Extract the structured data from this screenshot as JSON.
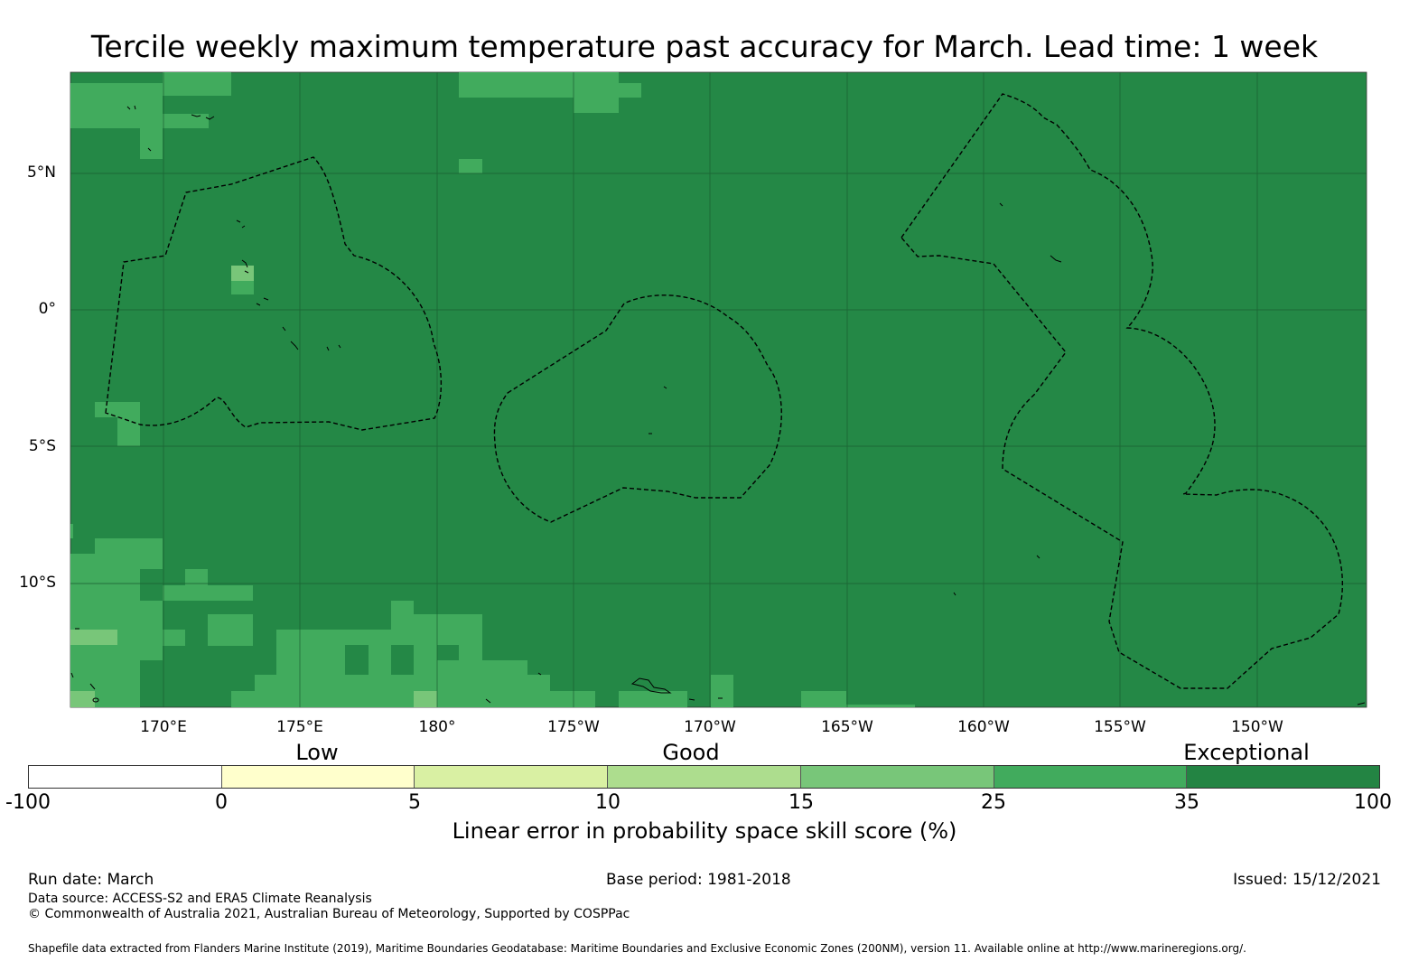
{
  "title": "Tercile weekly maximum temperature past accuracy for March. Lead time: 1 week",
  "map": {
    "background_color": "#248846",
    "lat_labels": [
      "5°N",
      "0°",
      "5°S",
      "10°S"
    ],
    "lon_labels": [
      "170°E",
      "175°E",
      "180°",
      "175°W",
      "170°W",
      "165°W",
      "160°W",
      "155°W",
      "150°W"
    ],
    "features": [
      "eez-boundary-dashed",
      "coastline",
      "graticule"
    ]
  },
  "legend": {
    "categories": [
      "Low",
      "Good",
      "Exceptional"
    ],
    "ticks": [
      "-100",
      "0",
      "5",
      "10",
      "15",
      "25",
      "35",
      "100"
    ],
    "colors": [
      "#ffffff",
      "#ffffcc",
      "#d9f0a3",
      "#addd8e",
      "#78c679",
      "#41ab5d",
      "#238443"
    ],
    "title": "Linear error in probability space skill score (%)"
  },
  "footer": {
    "run_date": "Run date: March",
    "base_period": "Base period: 1981-2018",
    "issued": "Issued: 15/12/2021",
    "data_source": "Data source: ACCESS-S2 and ERA5 Climate Reanalysis",
    "copyright": "© Commonwealth of Australia 2021, Australian Bureau of Meteorology, Supported by COSPPac",
    "shapefile": "Shapefile data extracted from Flanders Marine Institute (2019), Maritime Boundaries Geodatabase: Maritime Boundaries and Exclusive Economic Zones (200NM), version 11. Available online at http://www.marineregions.org/."
  }
}
